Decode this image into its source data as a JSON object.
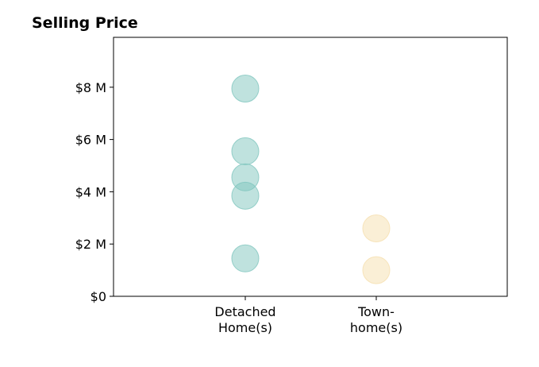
{
  "chart_data": {
    "type": "scatter",
    "title": "Selling Price",
    "xlabel": "",
    "ylabel": "",
    "categories": [
      [
        "Detached",
        "Home(s)"
      ],
      [
        "Town-",
        "home(s)"
      ]
    ],
    "y_ticks": [
      0,
      2,
      4,
      6,
      8
    ],
    "y_tick_labels": [
      "$0",
      "$2 M",
      "$4 M",
      "$6 M",
      "$8 M"
    ],
    "ylim": [
      0,
      10
    ],
    "units": "millions USD",
    "grid": false,
    "series": [
      {
        "category_index": 0,
        "color": "#7fc6be",
        "values": [
          7.95,
          5.55,
          4.55,
          3.85,
          1.45
        ]
      },
      {
        "category_index": 1,
        "color": "#f5dfae",
        "values": [
          2.6,
          1.0
        ]
      }
    ]
  }
}
